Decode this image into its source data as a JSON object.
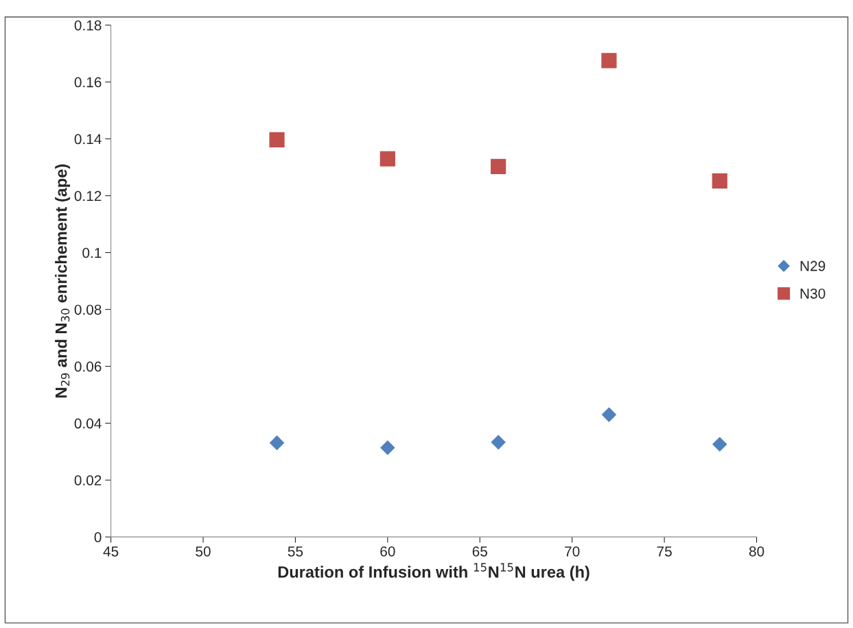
{
  "chart_data": {
    "type": "scatter",
    "xlabel": "Duration of Infusion with $^{15}$N$^{15}$N urea (h)",
    "ylabel": "N$_{29}$ and N$_{30}$ enrichement (ape)",
    "x": [
      54,
      60,
      66,
      72,
      78
    ],
    "series": [
      {
        "name": "N29",
        "color": "#4f81bd",
        "marker": "diamond",
        "values": [
          0.0331,
          0.0314,
          0.0333,
          0.043,
          0.0326
        ]
      },
      {
        "name": "N30",
        "color": "#c0504d",
        "marker": "square",
        "values": [
          0.1397,
          0.133,
          0.1303,
          0.1675,
          0.1252
        ]
      }
    ],
    "xlim": [
      45,
      80
    ],
    "xticks": [
      45,
      50,
      55,
      60,
      65,
      70,
      75,
      80
    ],
    "ylim": [
      0,
      0.18
    ],
    "yticks": [
      0,
      0.02,
      0.04,
      0.06,
      0.08,
      0.1,
      0.12,
      0.14,
      0.16,
      0.18
    ],
    "grid": false,
    "legend": "right"
  }
}
